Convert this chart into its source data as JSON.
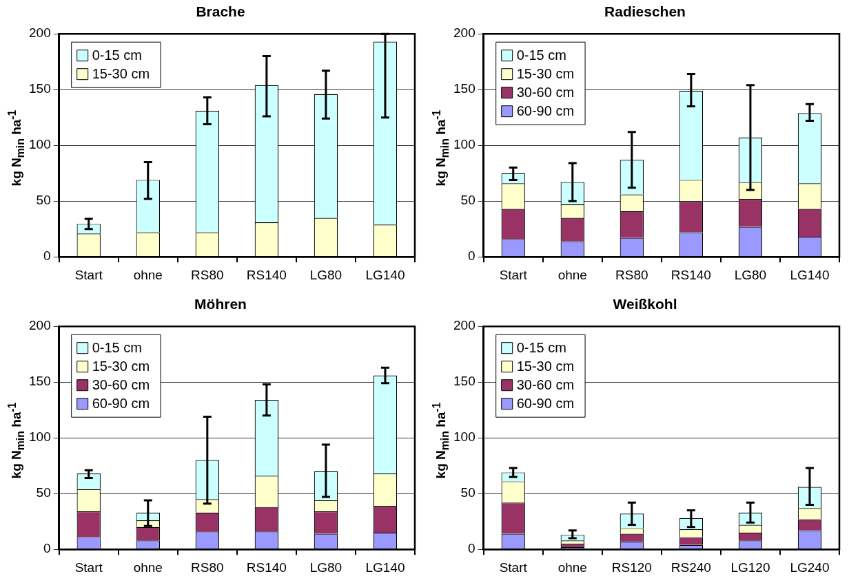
{
  "chart_data": [
    {
      "type": "bar",
      "title": "Brache",
      "ylabel": "kg N$_{min}$ ha$^{-1}$",
      "categories": [
        "Start",
        "ohne",
        "RS80",
        "RS140",
        "LG80",
        "LG140"
      ],
      "stacked": true,
      "ylim": [
        0,
        200
      ],
      "yticks": [
        0,
        50,
        100,
        150,
        200
      ],
      "grid": "y",
      "legend": "top left",
      "series": [
        {
          "name": "15-30 cm",
          "color": "#ffffcc",
          "values": [
            21,
            22,
            22,
            31,
            35,
            29
          ]
        },
        {
          "name": "0-15 cm",
          "color": "#ccffff",
          "values": [
            8.5,
            47,
            109,
            123,
            111,
            164
          ],
          "errors": [
            [
              25,
              34
            ],
            [
              52,
              85
            ],
            [
              119,
              143
            ],
            [
              126,
              180
            ],
            [
              124,
              167
            ],
            [
              125,
              200
            ]
          ]
        }
      ]
    },
    {
      "type": "bar",
      "title": "Radieschen",
      "ylabel": "kg N$_{min}$ ha$^{-1}$",
      "categories": [
        "Start",
        "ohne",
        "RS80",
        "RS140",
        "LG80",
        "LG140"
      ],
      "stacked": true,
      "ylim": [
        0,
        200
      ],
      "yticks": [
        0,
        50,
        100,
        150,
        200
      ],
      "grid": "y",
      "legend": "top left",
      "series": [
        {
          "name": "60-90 cm",
          "color": "#9999ff",
          "values": [
            16,
            14,
            17,
            22,
            27,
            18
          ]
        },
        {
          "name": "30-60 cm",
          "color": "#993366",
          "values": [
            27,
            21,
            24,
            28,
            25,
            25
          ]
        },
        {
          "name": "15-30 cm",
          "color": "#ffffcc",
          "values": [
            23,
            12,
            15,
            19,
            15,
            23
          ]
        },
        {
          "name": "0-15 cm",
          "color": "#ccffff",
          "values": [
            9,
            20,
            31,
            80,
            40,
            63
          ],
          "errors": [
            [
              69,
              80
            ],
            [
              50,
              84
            ],
            [
              62,
              112
            ],
            [
              135,
              164
            ],
            [
              60,
              154
            ],
            [
              122,
              137
            ]
          ]
        }
      ]
    },
    {
      "type": "bar",
      "title": "Möhren",
      "ylabel": "kg N$_{min}$ ha$^{-1}$",
      "categories": [
        "Start",
        "ohne",
        "RS80",
        "RS140",
        "LG80",
        "LG140"
      ],
      "stacked": true,
      "ylim": [
        0,
        200
      ],
      "yticks": [
        0,
        50,
        100,
        150,
        200
      ],
      "grid": "y",
      "legend": "top left",
      "series": [
        {
          "name": "60-90 cm",
          "color": "#9999ff",
          "values": [
            11,
            8,
            16,
            16,
            14,
            15
          ]
        },
        {
          "name": "30-60 cm",
          "color": "#993366",
          "values": [
            23,
            12,
            17,
            22,
            20,
            24
          ]
        },
        {
          "name": "15-30 cm",
          "color": "#ffffcc",
          "values": [
            20,
            6,
            12,
            28,
            10,
            29
          ]
        },
        {
          "name": "0-15 cm",
          "color": "#ccffff",
          "values": [
            14,
            7,
            35,
            68,
            26,
            88
          ],
          "errors": [
            [
              64,
              71
            ],
            [
              21,
              44
            ],
            [
              41,
              119
            ],
            [
              120,
              148
            ],
            [
              47,
              94
            ],
            [
              149,
              163
            ]
          ]
        }
      ]
    },
    {
      "type": "bar",
      "title": "Weißkohl",
      "ylabel": "kg N$_{min}$ ha$^{-1}$",
      "categories": [
        "Start",
        "ohne",
        "RS120",
        "RS240",
        "LG120",
        "LG240"
      ],
      "stacked": true,
      "ylim": [
        0,
        200
      ],
      "yticks": [
        0,
        50,
        100,
        150,
        200
      ],
      "grid": "y",
      "legend": "top left",
      "series": [
        {
          "name": "60-90 cm",
          "color": "#9999ff",
          "values": [
            14,
            2,
            7,
            4,
            8,
            17
          ]
        },
        {
          "name": "30-60 cm",
          "color": "#993366",
          "values": [
            28,
            3,
            7,
            7,
            7,
            10
          ]
        },
        {
          "name": "15-30 cm",
          "color": "#ffffcc",
          "values": [
            19,
            3,
            5,
            7,
            7,
            10
          ]
        },
        {
          "name": "0-15 cm",
          "color": "#ccffff",
          "values": [
            8,
            5,
            13,
            10,
            11,
            19
          ],
          "errors": [
            [
              65,
              73
            ],
            [
              10,
              17
            ],
            [
              22,
              42
            ],
            [
              20,
              35
            ],
            [
              24,
              42
            ],
            [
              40,
              73
            ]
          ]
        }
      ]
    }
  ]
}
